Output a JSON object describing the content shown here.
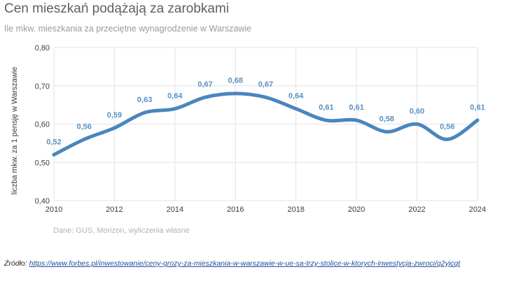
{
  "title": "Cen mieszkań podążają za zarobkami",
  "subtitle": "Ile mkw. mieszkania za przeciętne wynagrodzenie w Warszawie",
  "note": "Dane: GUS, Morizon, wyliczenia własne",
  "source": {
    "prefix": "Źródło:",
    "link": "https://www.forbes.pl/inwestowanie/ceny-grozy-za-mieszkania-w-warszawie-w-ue-sa-trzy-stolice-w-ktorych-inwestycja-zwroci/q2yjcqt"
  },
  "colors": {
    "line": "#4a86be",
    "label": "#5a8fc2",
    "grid": "#e3e3e3"
  },
  "chart_data": {
    "type": "line",
    "title": "Cen mieszkań podążają za zarobkami",
    "subtitle": "Ile mkw. mieszkania za przeciętne wynagrodzenie w Warszawie",
    "xlabel": "",
    "ylabel": "liczba mkw. za 1 pensję w Warszawie",
    "x": [
      2010,
      2011,
      2012,
      2013,
      2014,
      2015,
      2016,
      2017,
      2018,
      2019,
      2020,
      2021,
      2022,
      2023,
      2024
    ],
    "values": [
      0.52,
      0.56,
      0.59,
      0.63,
      0.64,
      0.67,
      0.68,
      0.67,
      0.64,
      0.61,
      0.61,
      0.58,
      0.6,
      0.56,
      0.61
    ],
    "data_labels": [
      "0,52",
      "0,56",
      "0,59",
      "0,63",
      "0,64",
      "0,67",
      "0,68",
      "0,67",
      "0,64",
      "0,61",
      "0,61",
      "0,58",
      "0,60",
      "0,56",
      "0,61"
    ],
    "xticks": [
      "2010",
      "2012",
      "2014",
      "2016",
      "2018",
      "2020",
      "2022",
      "2024"
    ],
    "yticks": [
      "0,40",
      "0,50",
      "0,60",
      "0,70",
      "0,80"
    ],
    "ylim": [
      0.4,
      0.8
    ],
    "xlim": [
      2010,
      2024
    ],
    "grid": true,
    "legend": "none"
  }
}
